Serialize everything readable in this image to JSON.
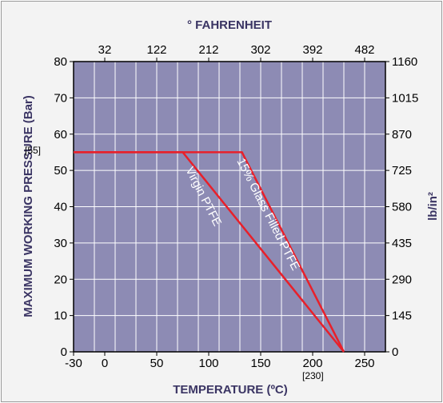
{
  "chart_data": {
    "type": "line",
    "top_axis_title": "° FAHRENHEIT",
    "top_ticks": [
      "32",
      "122",
      "212",
      "302",
      "392",
      "482"
    ],
    "xlabel": "TEMPERATURE (ºC)",
    "ylabel": "MAXIMUM WORKING PRESSURE (Bar)",
    "right_axis_title": "lb/in²",
    "xlim": [
      -30,
      270
    ],
    "ylim": [
      0,
      80
    ],
    "x_ticks": [
      -30,
      0,
      50,
      100,
      150,
      200,
      250
    ],
    "x_tick_labels": [
      "-30",
      "0",
      "50",
      "100",
      "150",
      "200",
      "250"
    ],
    "y_ticks": [
      0,
      10,
      20,
      30,
      40,
      50,
      60,
      70,
      80
    ],
    "y_tick_labels": [
      "0",
      "10",
      "20",
      "30",
      "40",
      "50",
      "60",
      "70",
      "80"
    ],
    "right_ticks": [
      "0",
      "145",
      "290",
      "435",
      "580",
      "725",
      "870",
      "1015",
      "1160"
    ],
    "annotation_y": "[55]",
    "annotation_x": "[230]",
    "colors": {
      "plot_bg": "#8d8bb4",
      "grid": "#ffffff",
      "line": "#e8202a",
      "text": "#3a3463"
    },
    "series": [
      {
        "name": "Virgin PTFE",
        "points": [
          [
            -30,
            55
          ],
          [
            75,
            55
          ],
          [
            230,
            0
          ]
        ]
      },
      {
        "name": "15% Glass Filled PTFE",
        "points": [
          [
            -30,
            55
          ],
          [
            132,
            55
          ],
          [
            230,
            0
          ]
        ]
      }
    ]
  }
}
